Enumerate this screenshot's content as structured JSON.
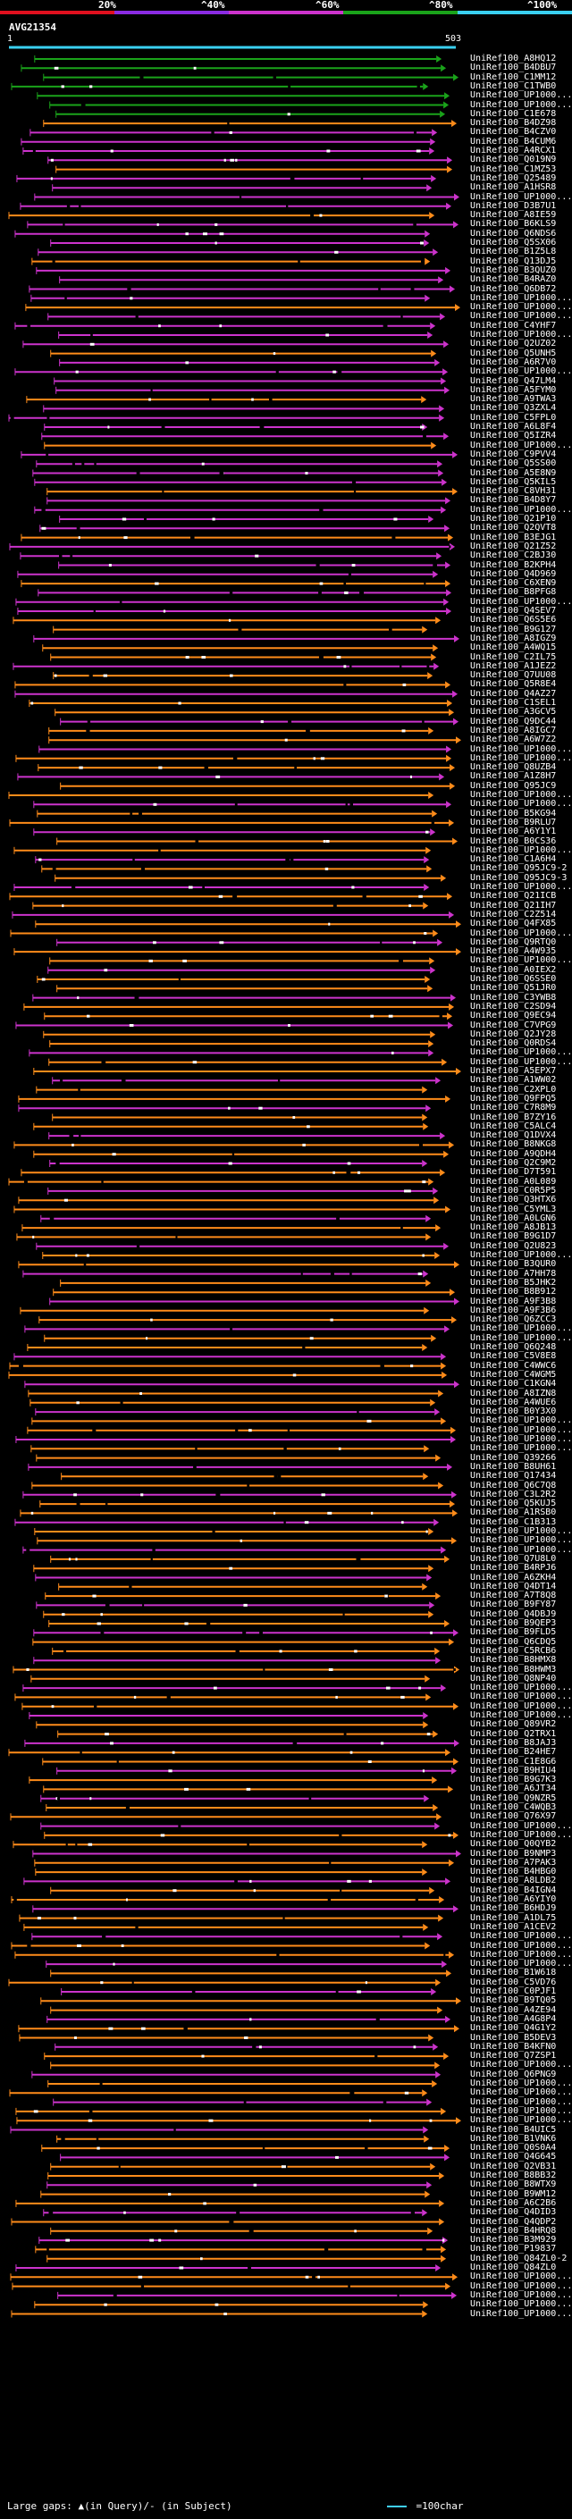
{
  "legend": {
    "ticks": [
      "20%",
      "^40%",
      "^60%",
      "^80%",
      "^100%"
    ],
    "colors": [
      "#e0101e",
      "#8a2be2",
      "#cc33cc",
      "#1aa31a",
      "#3ad0f0"
    ]
  },
  "query": {
    "id": "AVG21354",
    "start": "1",
    "end": "503"
  },
  "footer": {
    "gaps_text": "Large gaps: ▲(in Query)/‐ (in Subject)",
    "scale_text": "=100char"
  },
  "chart_data": {
    "type": "alignment-overview",
    "query_length": 503,
    "identity_bins": [
      {
        "label": "20%",
        "color": "#e0101e"
      },
      {
        "label": "40%",
        "color": "#8a2be2"
      },
      {
        "label": "60%",
        "color": "#cc33cc"
      },
      {
        "label": "80%",
        "color": "#1aa31a"
      },
      {
        "label": "100%",
        "color": "#3ad0f0"
      }
    ],
    "hits": [
      "UniRef100_A8HQ12",
      "UniRef100_B4DBU7",
      "UniRef100_C1MM12",
      "UniRef100_C1TWB0",
      "UniRef100_UP1000...",
      "UniRef100_UP1000...",
      "UniRef100_C1E678",
      "UniRef100_B4DZ98",
      "UniRef100_B4CZV0",
      "UniRef100_B4CUM6",
      "UniRef100_A4RCX1",
      "UniRef100_Q019N9",
      "UniRef100_C1MZ53",
      "UniRef100_Q25489",
      "UniRef100_A1HSR8",
      "UniRef100_UP1000...",
      "UniRef100_D3B7U1",
      "UniRef100_A8IE59",
      "UniRef100_B6KLS9",
      "UniRef100_Q6NDS6",
      "UniRef100_Q5SX06",
      "UniRef100_B1Z5L8",
      "UniRef100_Q13DJ5",
      "UniRef100_B3QUZ0",
      "UniRef100_B4RAZ0",
      "UniRef100_Q6DB72",
      "UniRef100_UP1000...",
      "UniRef100_UP1000...",
      "UniRef100_UP1000...",
      "UniRef100_C4YHF7",
      "UniRef100_UP1000...",
      "UniRef100_Q2UZ02",
      "UniRef100_Q5UNH5",
      "UniRef100_A6R7V0",
      "UniRef100_UP1000...",
      "UniRef100_Q47LM4",
      "UniRef100_A5FYM0",
      "UniRef100_A9TWA3",
      "UniRef100_Q3ZXL4",
      "UniRef100_C5FPL0",
      "UniRef100_A6L8F4",
      "UniRef100_Q5IZR4",
      "UniRef100_UP1000...",
      "UniRef100_C9PVV4",
      "UniRef100_Q5SS00",
      "UniRef100_A5E8N9",
      "UniRef100_Q5KIL5",
      "UniRef100_C8VH31",
      "UniRef100_B4D8Y7",
      "UniRef100_UP1000...",
      "UniRef100_Q21P10",
      "UniRef100_Q2QVT8",
      "UniRef100_B3EJG1",
      "UniRef100_Q21Z52",
      "UniRef100_C2BJ30",
      "UniRef100_B2KPH4",
      "UniRef100_Q4D969",
      "UniRef100_C6XEN9",
      "UniRef100_B8PFG8",
      "UniRef100_UP1000...",
      "UniRef100_Q4SEV7",
      "UniRef100_Q6S5E6",
      "UniRef100_B9G127",
      "UniRef100_A8IGZ9",
      "UniRef100_A4WQ15",
      "UniRef100_C2IL75",
      "UniRef100_A1JEZ2",
      "UniRef100_Q7UU08",
      "UniRef100_Q5R8E4",
      "UniRef100_Q4AZ27",
      "UniRef100_C1SEL1",
      "UniRef100_A3GCV5",
      "UniRef100_Q9DC44",
      "UniRef100_A8IGC7",
      "UniRef100_A6W7Z2",
      "UniRef100_UP1000...",
      "UniRef100_UP1000...",
      "UniRef100_Q8UZB4",
      "UniRef100_A1Z8H7",
      "UniRef100_Q95JC9",
      "UniRef100_UP1000...",
      "UniRef100_UP1000...",
      "UniRef100_B5KG94",
      "UniRef100_B9RLU7",
      "UniRef100_A6Y1Y1",
      "UniRef100_B0CS36",
      "UniRef100_UP1000...",
      "UniRef100_C1A6H4",
      "UniRef100_Q95JC9-2",
      "UniRef100_Q95JC9-3",
      "UniRef100_UP1000...",
      "UniRef100_Q21ICB",
      "UniRef100_Q21IH7",
      "UniRef100_C2Z514",
      "UniRef100_Q4FX85",
      "UniRef100_UP1000...",
      "UniRef100_Q9RTQ0",
      "UniRef100_A4W935",
      "UniRef100_UP1000...",
      "UniRef100_A0IEX2",
      "UniRef100_Q6SSE0",
      "UniRef100_Q51JR0",
      "UniRef100_C3YWB8",
      "UniRef100_C2SD94",
      "UniRef100_Q9EC94",
      "UniRef100_C7VPG9",
      "UniRef100_Q2JY28",
      "UniRef100_Q0RDS4",
      "UniRef100_UP1000...",
      "UniRef100_UP1000...",
      "UniRef100_A5EPX7",
      "UniRef100_A1WW02",
      "UniRef100_C2XPL0",
      "UniRef100_Q9FPQ5",
      "UniRef100_C7R8M9",
      "UniRef100_B7ZY16",
      "UniRef100_C5ALC4",
      "UniRef100_Q1DVX4",
      "UniRef100_B8NKG8",
      "UniRef100_A9QDH4",
      "UniRef100_Q2C9M2",
      "UniRef100_D7T591",
      "UniRef100_A0L089",
      "UniRef100_C0R5P5",
      "UniRef100_Q3HTX6",
      "UniRef100_C5YML3",
      "UniRef100_A0LGN6",
      "UniRef100_A8JB13",
      "UniRef100_B9G1D7",
      "UniRef100_Q2U823",
      "UniRef100_UP1000...",
      "UniRef100_B3QUR0",
      "UniRef100_A7HH78",
      "UniRef100_B5JHK2",
      "UniRef100_B8B912",
      "UniRef100_A9F3B8",
      "UniRef100_A9F3B6",
      "UniRef100_Q6ZCC3",
      "UniRef100_UP1000...",
      "UniRef100_UP1000...",
      "UniRef100_Q6Q248",
      "UniRef100_C5V8E8",
      "UniRef100_C4WWC6",
      "UniRef100_C4WGM5",
      "UniRef100_C1KGN4",
      "UniRef100_A8IZN8",
      "UniRef100_A4WUE6",
      "UniRef100_B0Y3X0",
      "UniRef100_UP1000...",
      "UniRef100_UP1000...",
      "UniRef100_UP1000...",
      "UniRef100_UP1000...",
      "UniRef100_Q39266",
      "UniRef100_B8UH61",
      "UniRef100_Q17434",
      "UniRef100_Q6C7Q8",
      "UniRef100_C3L2R2",
      "UniRef100_Q5KUJ5",
      "UniRef100_A1RSB0",
      "UniRef100_C1B313",
      "UniRef100_UP1000...",
      "UniRef100_UP1000...",
      "UniRef100_UP1000...",
      "UniRef100_Q7U8L0",
      "UniRef100_B4RPJ6",
      "UniRef100_A6ZKH4",
      "UniRef100_Q4DT14",
      "UniRef100_A7T8Q8",
      "UniRef100_B9FY87",
      "UniRef100_Q4DBJ9",
      "UniRef100_B9QEP3",
      "UniRef100_B9FLD5",
      "UniRef100_Q6CDQ5",
      "UniRef100_C5RCB6",
      "UniRef100_B8HMX8",
      "UniRef100_B8HWM3",
      "UniRef100_Q8NP40",
      "UniRef100_UP1000...",
      "UniRef100_UP1000...",
      "UniRef100_UP1000...",
      "UniRef100_UP1000...",
      "UniRef100_Q89VR2",
      "UniRef100_Q2TRX1",
      "UniRef100_B8JAJ3",
      "UniRef100_B24HE7",
      "UniRef100_C1E8G6",
      "UniRef100_B9HIU4",
      "UniRef100_B9G7K3",
      "UniRef100_A6JT34",
      "UniRef100_Q9NZR5",
      "UniRef100_C4WQB3",
      "UniRef100_Q76X97",
      "UniRef100_UP1000...",
      "UniRef100_UP1000...",
      "UniRef100_Q0QYB2",
      "UniRef100_B9NMP3",
      "UniRef100_A7PAK3",
      "UniRef100_B4HBG0",
      "UniRef100_A8LDB2",
      "UniRef100_B4IGN4",
      "UniRef100_A6YIY0",
      "UniRef100_B6HDJ9",
      "UniRef100_A1DL75",
      "UniRef100_A1CEV2",
      "UniRef100_UP1000...",
      "UniRef100_UP1000...",
      "UniRef100_UP1000...",
      "UniRef100_UP1000...",
      "UniRef100_B1W618",
      "UniRef100_C5VD76",
      "UniRef100_C0PJF1",
      "UniRef100_B9TQ05",
      "UniRef100_A4ZE94",
      "UniRef100_A4G8P4",
      "UniRef100_Q4G1Y2",
      "UniRef100_B5DEV3",
      "UniRef100_B4KFN0",
      "UniRef100_Q7ZSP1",
      "UniRef100_UP1000...",
      "UniRef100_Q6PNG9",
      "UniRef100_UP1000...",
      "UniRef100_UP1000...",
      "UniRef100_UP1000...",
      "UniRef100_UP1000...",
      "UniRef100_UP1000...",
      "UniRef100_B4UIC5",
      "UniRef100_B1VNK6",
      "UniRef100_Q0S0A4",
      "UniRef100_Q4G645",
      "UniRef100_Q2VB31",
      "UniRef100_B8BB32",
      "UniRef100_B8WTX9",
      "UniRef100_B9WM12",
      "UniRef100_A6C2B6",
      "UniRef100_Q4DID3",
      "UniRef100_Q4QDP2",
      "UniRef100_B4HRQ8",
      "UniRef100_B3M929",
      "UniRef100_P19837",
      "UniRef100_Q84ZL0-2",
      "UniRef100_Q84ZL0",
      "UniRef100_UP1000...",
      "UniRef100_UP1000...",
      "UniRef100_UP1000...",
      "UniRef100_UP1000...",
      "UniRef100_UP1000..."
    ]
  }
}
